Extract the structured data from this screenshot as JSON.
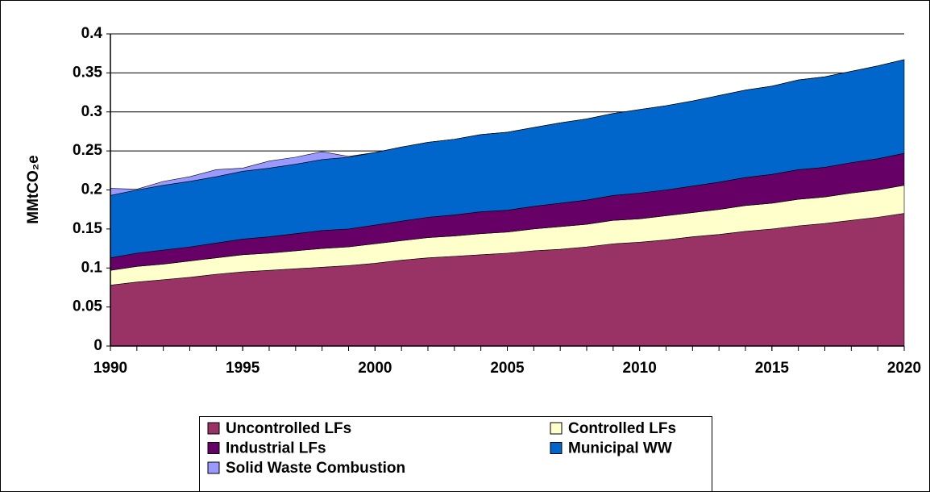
{
  "chart_data": {
    "type": "stacked-area",
    "y_label": "MMtCO₂e",
    "x": [
      1990,
      1991,
      1992,
      1993,
      1994,
      1995,
      1996,
      1997,
      1998,
      1999,
      2000,
      2001,
      2002,
      2003,
      2004,
      2005,
      2006,
      2007,
      2008,
      2009,
      2010,
      2011,
      2012,
      2013,
      2014,
      2015,
      2016,
      2017,
      2018,
      2019,
      2020
    ],
    "series": [
      {
        "name": "Uncontrolled LFs",
        "color": "#993366",
        "values": [
          0.078,
          0.082,
          0.085,
          0.088,
          0.092,
          0.095,
          0.097,
          0.099,
          0.101,
          0.103,
          0.106,
          0.11,
          0.113,
          0.115,
          0.117,
          0.119,
          0.122,
          0.124,
          0.127,
          0.131,
          0.133,
          0.136,
          0.14,
          0.143,
          0.147,
          0.15,
          0.154,
          0.157,
          0.161,
          0.165,
          0.17
        ]
      },
      {
        "name": "Controlled LFs",
        "color": "#ffffcc",
        "values": [
          0.019,
          0.02,
          0.02,
          0.021,
          0.021,
          0.022,
          0.022,
          0.023,
          0.024,
          0.024,
          0.025,
          0.025,
          0.026,
          0.026,
          0.027,
          0.027,
          0.028,
          0.029,
          0.029,
          0.03,
          0.03,
          0.031,
          0.031,
          0.032,
          0.033,
          0.033,
          0.034,
          0.034,
          0.035,
          0.035,
          0.036
        ]
      },
      {
        "name": "Industrial LFs",
        "color": "#660066",
        "values": [
          0.016,
          0.017,
          0.018,
          0.018,
          0.019,
          0.02,
          0.021,
          0.022,
          0.023,
          0.023,
          0.024,
          0.025,
          0.026,
          0.027,
          0.028,
          0.028,
          0.029,
          0.03,
          0.031,
          0.032,
          0.033,
          0.033,
          0.034,
          0.035,
          0.036,
          0.037,
          0.038,
          0.038,
          0.039,
          0.04,
          0.041
        ]
      },
      {
        "name": "Municipal WW",
        "color": "#0066cc",
        "values": [
          0.08,
          0.081,
          0.083,
          0.084,
          0.085,
          0.087,
          0.088,
          0.089,
          0.091,
          0.092,
          0.093,
          0.095,
          0.096,
          0.097,
          0.099,
          0.1,
          0.101,
          0.103,
          0.104,
          0.105,
          0.107,
          0.108,
          0.109,
          0.111,
          0.112,
          0.113,
          0.115,
          0.116,
          0.117,
          0.119,
          0.12
        ]
      },
      {
        "name": "Solid Waste Combustion",
        "color": "#9999ff",
        "values": [
          0.009,
          0.001,
          0.005,
          0.006,
          0.009,
          0.004,
          0.009,
          0.009,
          0.01,
          0.001,
          0,
          0,
          0,
          0,
          0,
          0,
          0,
          0,
          0,
          0,
          0,
          0,
          0,
          0,
          0,
          0,
          0,
          0,
          0,
          0,
          0
        ]
      }
    ],
    "xlim": [
      1990,
      2020
    ],
    "xticks": [
      1990,
      1995,
      2000,
      2005,
      2010,
      2015,
      2020
    ],
    "ylim": [
      0,
      0.4
    ],
    "yticks": [
      0,
      0.05,
      0.1,
      0.15,
      0.2,
      0.25,
      0.3,
      0.35,
      0.4
    ],
    "grid": true,
    "legend": "bottom"
  }
}
